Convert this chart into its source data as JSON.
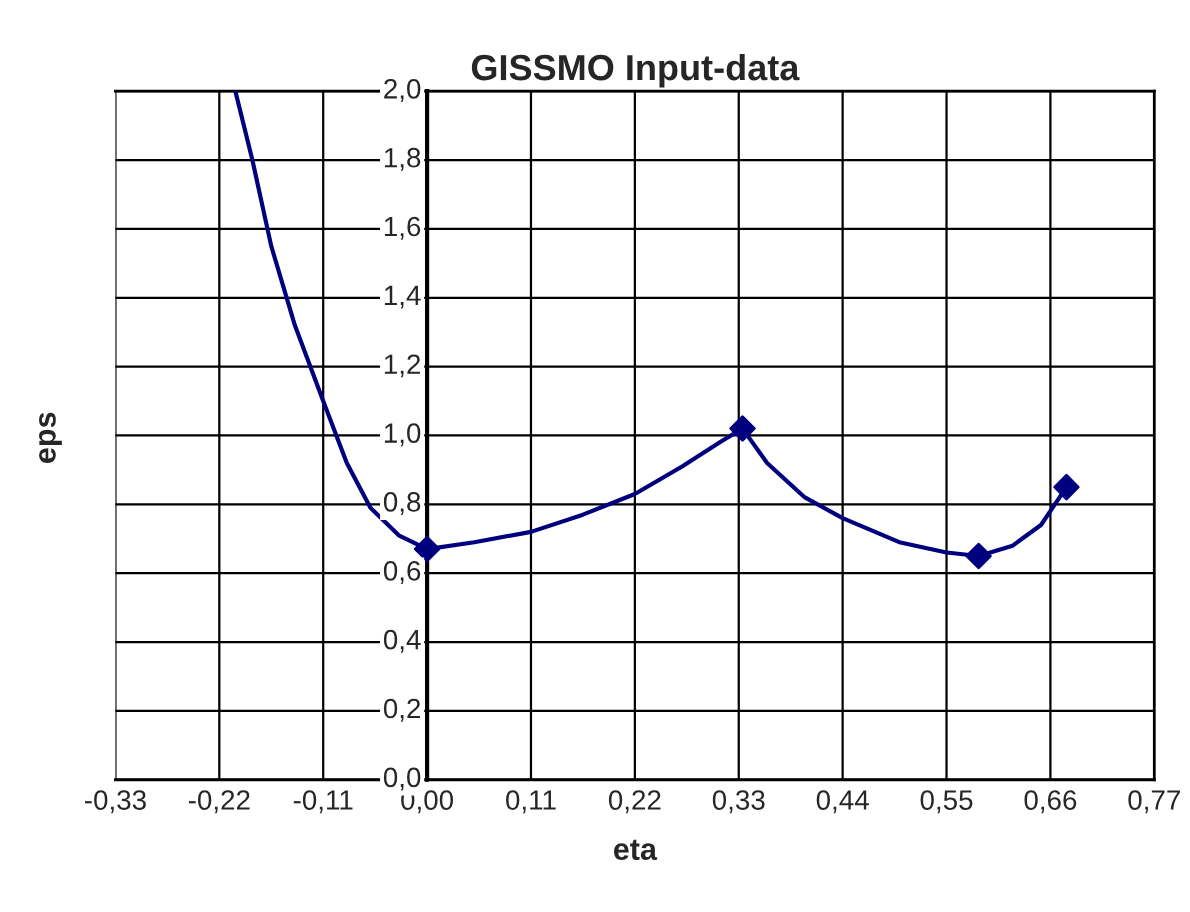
{
  "chart_data": {
    "type": "line",
    "title": "GISSMO Input-data",
    "xlabel": "eta",
    "ylabel": "eps",
    "xlim": [
      -0.33,
      0.77
    ],
    "xticks": [
      {
        "value": -0.33,
        "label": "-0,33"
      },
      {
        "value": -0.22,
        "label": "-0,22"
      },
      {
        "value": -0.11,
        "label": "-0,11"
      },
      {
        "value": 0,
        "label": "0,00"
      },
      {
        "value": 0.11,
        "label": "0,11"
      },
      {
        "value": 0.22,
        "label": "0,22"
      },
      {
        "value": 0.33,
        "label": "0,33"
      },
      {
        "value": 0.44,
        "label": "0,44"
      },
      {
        "value": 0.55,
        "label": "0,55"
      },
      {
        "value": 0.66,
        "label": "0,66"
      },
      {
        "value": 0.77,
        "label": "0,77"
      }
    ],
    "ylim": [
      0,
      2
    ],
    "yticks": [
      {
        "value": 0,
        "label": "0,0"
      },
      {
        "value": 0.2,
        "label": "0,2"
      },
      {
        "value": 0.4,
        "label": "0,4"
      },
      {
        "value": 0.6,
        "label": "0,6"
      },
      {
        "value": 0.8,
        "label": "0,8"
      },
      {
        "value": 1.0,
        "label": "1,0"
      },
      {
        "value": 1.2,
        "label": "1,2"
      },
      {
        "value": 1.4,
        "label": "1,4"
      },
      {
        "value": 1.6,
        "label": "1,6"
      },
      {
        "value": 1.8,
        "label": "1,8"
      },
      {
        "value": 2.0,
        "label": "2,0"
      }
    ],
    "grid": true,
    "series": [
      {
        "color": "#00007f",
        "marker": "none",
        "x": [
          -0.203,
          -0.185,
          -0.165,
          -0.14,
          -0.11,
          -0.085,
          -0.06,
          -0.03,
          0.0,
          0.05,
          0.11,
          0.165,
          0.22,
          0.27,
          0.31,
          0.334,
          0.36,
          0.4,
          0.44,
          0.5,
          0.55,
          0.584,
          0.62,
          0.65,
          0.677
        ],
        "values": [
          2.0,
          1.8,
          1.55,
          1.32,
          1.1,
          0.92,
          0.79,
          0.71,
          0.67,
          0.69,
          0.72,
          0.77,
          0.83,
          0.91,
          0.98,
          1.02,
          0.92,
          0.82,
          0.76,
          0.69,
          0.66,
          0.65,
          0.68,
          0.74,
          0.85
        ]
      },
      {
        "type": "scatter",
        "color": "#00007f",
        "marker": "diamond",
        "x": [
          0.0,
          0.334,
          0.584,
          0.677
        ],
        "values": [
          0.67,
          1.02,
          0.65,
          0.85
        ]
      }
    ]
  }
}
